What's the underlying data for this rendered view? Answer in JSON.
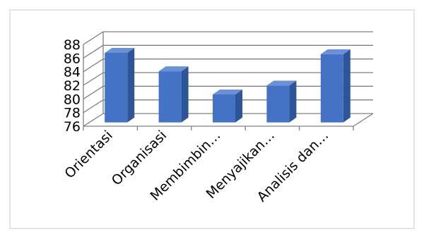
{
  "chart_data": {
    "type": "bar",
    "categories": [
      "Orientasi",
      "Organisasi",
      "Membimbin…",
      "Menyajikan…",
      "Analisis dan…"
    ],
    "values": [
      86.2,
      83.5,
      80.1,
      81.4,
      86.0
    ],
    "ylim": [
      76,
      88
    ],
    "yticks": [
      76,
      78,
      80,
      82,
      84,
      86,
      88
    ],
    "grid": true,
    "three_d": true,
    "bar_color": "#4472C4",
    "bar_side_color": "#2E5597",
    "bar_top_color": "#6A90D8"
  }
}
